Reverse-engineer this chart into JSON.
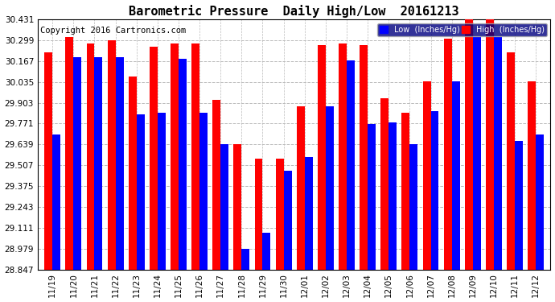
{
  "title": "Barometric Pressure  Daily High/Low  20161213",
  "copyright": "Copyright 2016 Cartronics.com",
  "dates": [
    "11/19",
    "11/20",
    "11/21",
    "11/22",
    "11/23",
    "11/24",
    "11/25",
    "11/26",
    "11/27",
    "11/28",
    "11/29",
    "11/30",
    "12/01",
    "12/02",
    "12/03",
    "12/04",
    "12/05",
    "12/06",
    "12/07",
    "12/08",
    "12/09",
    "12/10",
    "12/11",
    "12/12"
  ],
  "high": [
    30.22,
    30.32,
    30.28,
    30.3,
    30.07,
    30.26,
    30.28,
    30.28,
    29.92,
    29.64,
    29.55,
    29.55,
    29.88,
    30.27,
    30.28,
    30.27,
    29.93,
    29.84,
    30.04,
    30.31,
    30.43,
    30.43,
    30.22,
    30.04
  ],
  "low": [
    29.7,
    30.19,
    30.19,
    30.19,
    29.83,
    29.84,
    30.18,
    29.84,
    29.64,
    28.98,
    29.08,
    29.47,
    29.56,
    29.88,
    30.17,
    29.77,
    29.78,
    29.64,
    29.85,
    30.04,
    30.32,
    30.32,
    29.66,
    29.7
  ],
  "ylim_min": 28.847,
  "ylim_max": 30.431,
  "yticks": [
    28.847,
    28.979,
    29.111,
    29.243,
    29.375,
    29.507,
    29.639,
    29.771,
    29.903,
    30.035,
    30.167,
    30.299,
    30.431
  ],
  "bar_color_high": "#ff0000",
  "bar_color_low": "#0000ff",
  "legend_low_label": "Low  (Inches/Hg)",
  "legend_high_label": "High  (Inches/Hg)",
  "bg_color": "#ffffff",
  "grid_color": "#bbbbbb",
  "title_fontsize": 11,
  "copyright_fontsize": 7.5
}
